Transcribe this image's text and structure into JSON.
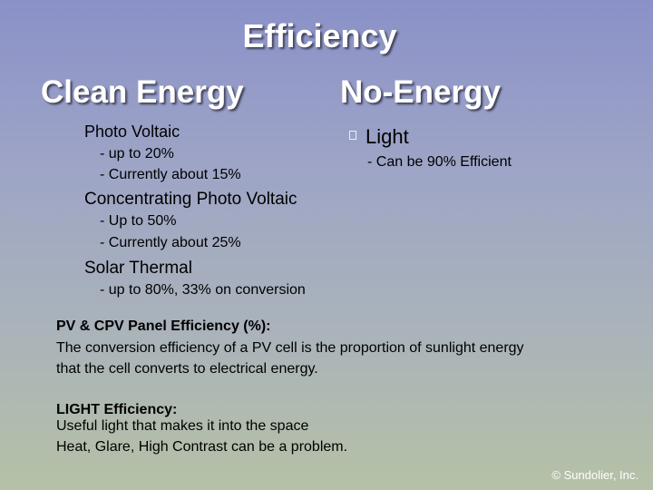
{
  "title": "Efficiency",
  "columns": [
    {
      "heading": "Clean Energy",
      "items": [
        {
          "label": "Photo Voltaic",
          "details": [
            "- up to 20%",
            "- Currently about 15%"
          ]
        },
        {
          "label": "Concentrating Photo Voltaic",
          "details": [
            "- Up to 50%",
            "- Currently about 25%"
          ]
        },
        {
          "label": "Solar Thermal",
          "details": [
            "- up to 80%, 33% on conversion"
          ]
        }
      ]
    },
    {
      "heading": "No-Energy",
      "items": [
        {
          "label": "Light",
          "details": [
            "- Can be 90% Efficient"
          ]
        }
      ]
    }
  ],
  "notes": [
    {
      "heading": "PV & CPV Panel Efficiency (%):",
      "lines": [
        "The conversion efficiency of a PV cell is the proportion of sunlight energy",
        "that the cell converts to electrical energy."
      ]
    },
    {
      "heading": "LIGHT Efficiency:",
      "lines": [
        "Useful light that makes it into the space",
        "Heat, Glare, High Contrast can be a problem."
      ]
    }
  ],
  "footer": "© Sundolier, Inc."
}
